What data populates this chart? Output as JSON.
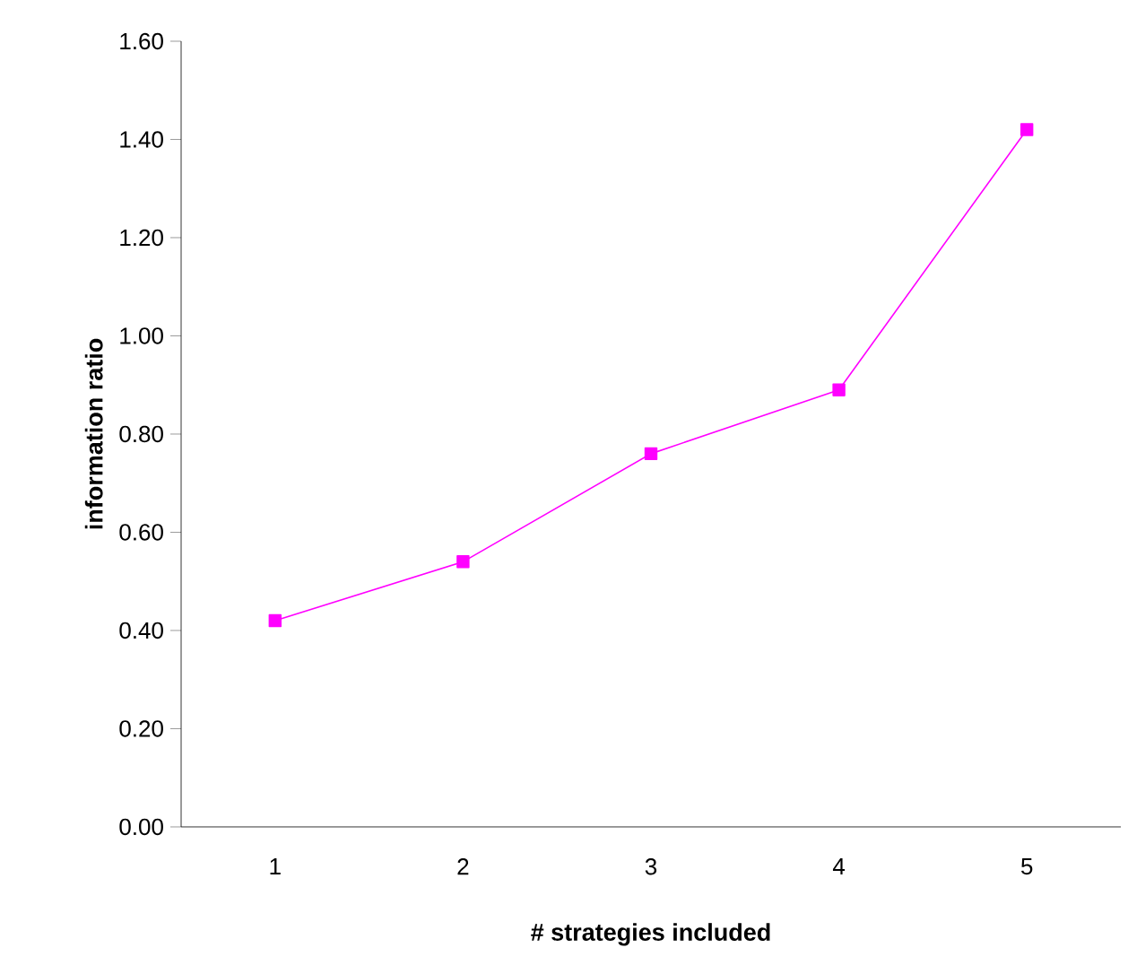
{
  "chart_data": {
    "type": "line",
    "xlabel": "# strategies included",
    "ylabel": "information ratio",
    "categories": [
      "1",
      "2",
      "3",
      "4",
      "5"
    ],
    "series": [
      {
        "color": "#ff00ff",
        "values": [
          0.42,
          0.54,
          0.76,
          0.89,
          1.42
        ]
      }
    ],
    "ylim": [
      0,
      1.6
    ],
    "yticks": [
      {
        "value": 0,
        "label": "0.00"
      },
      {
        "value": 0.2,
        "label": "0.20"
      },
      {
        "value": 0.4,
        "label": "0.40"
      },
      {
        "value": 0.6,
        "label": "0.60"
      },
      {
        "value": 0.8,
        "label": "0.80"
      },
      {
        "value": 1.0,
        "label": "1.00"
      },
      {
        "value": 1.2,
        "label": "1.20"
      },
      {
        "value": 1.4,
        "label": "1.40"
      },
      {
        "value": 1.6,
        "label": "1.60"
      }
    ],
    "marker": "square",
    "line_style": "solid",
    "grid": false
  }
}
